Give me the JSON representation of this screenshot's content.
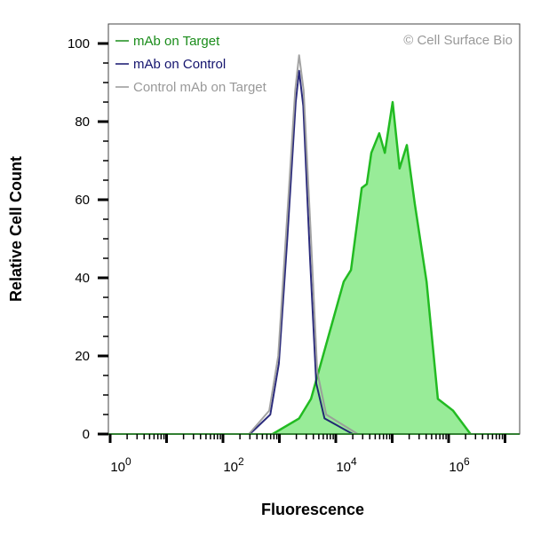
{
  "chart_data": {
    "type": "area",
    "title": "",
    "xlabel": "Fluorescence",
    "ylabel": "Relative Cell Count",
    "xscale": "log",
    "xlim": [
      1,
      18000000
    ],
    "ylim": [
      0,
      105
    ],
    "x_tick_labels": [
      {
        "value": 1,
        "base": "10",
        "exp": "0"
      },
      {
        "value": 100,
        "base": "10",
        "exp": "2"
      },
      {
        "value": 10000,
        "base": "10",
        "exp": "4"
      },
      {
        "value": 1000000,
        "base": "10",
        "exp": "6"
      }
    ],
    "y_ticks": [
      0,
      20,
      40,
      60,
      80,
      100
    ],
    "grid": false,
    "legend_placement": "top-left",
    "watermark": "© Cell Surface Bio",
    "series": [
      {
        "name": "mAb on Target",
        "color": "#22bb22",
        "fill": "#98ec98",
        "filled": true,
        "x": [
          759,
          2239,
          3631,
          7413,
          13800,
          18600,
          28800,
          35500,
          42700,
          58900,
          74100,
          102000,
          135000,
          182000,
          251000,
          407000,
          646000,
          1200000,
          2450000
        ],
        "y": [
          0,
          4,
          9,
          25,
          39,
          42,
          63,
          64,
          72,
          77,
          72,
          85,
          68,
          74,
          59,
          39,
          9,
          6,
          0
        ]
      },
      {
        "name": "mAb on Control",
        "color": "#14146e",
        "filled": false,
        "x": [
          300,
          690,
          980,
          1380,
          1950,
          2240,
          2650,
          3500,
          4500,
          6300,
          20000
        ],
        "y": [
          0,
          5,
          18,
          50,
          85,
          93,
          84,
          45,
          13,
          4,
          0
        ]
      },
      {
        "name": "Control mAb on Target",
        "color": "#999999",
        "filled": false,
        "x": [
          288,
          661,
          955,
          1350,
          1910,
          2240,
          2690,
          3630,
          4680,
          6760,
          24500
        ],
        "y": [
          0,
          6,
          20,
          54,
          88,
          97,
          88,
          50,
          16,
          5,
          0
        ]
      }
    ]
  }
}
